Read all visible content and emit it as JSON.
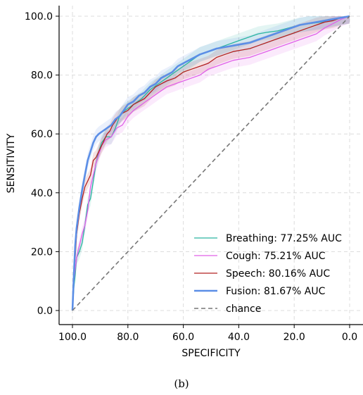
{
  "caption": "(b)",
  "chart_data": {
    "type": "line",
    "xlabel": "SPECIFICITY",
    "ylabel": "SENSITIVITY",
    "xlim": [
      100,
      0
    ],
    "ylim": [
      0,
      100
    ],
    "x_reversed": true,
    "xticks": [
      "100.0",
      "80.0",
      "60.0",
      "40.0",
      "20.0",
      "0.0"
    ],
    "yticks": [
      "0.0",
      "20.0",
      "40.0",
      "60.0",
      "80.0",
      "100.0"
    ],
    "grid": true,
    "legend_position": "bottom-right",
    "series": [
      {
        "name": "Breathing: 77.25% AUC",
        "color": "#2ab5a0",
        "band": true,
        "points": [
          [
            100,
            0
          ],
          [
            99.5,
            8
          ],
          [
            99,
            12
          ],
          [
            98.5,
            18
          ],
          [
            97.5,
            20
          ],
          [
            96.5,
            23
          ],
          [
            95.5,
            29
          ],
          [
            94.5,
            36
          ],
          [
            93.5,
            38
          ],
          [
            92.5,
            44
          ],
          [
            91.5,
            50
          ],
          [
            90.5,
            54
          ],
          [
            89.5,
            57
          ],
          [
            88,
            59
          ],
          [
            86,
            59
          ],
          [
            84.5,
            62
          ],
          [
            83,
            66
          ],
          [
            81,
            68
          ],
          [
            78,
            70
          ],
          [
            75,
            72
          ],
          [
            72,
            75
          ],
          [
            69,
            77
          ],
          [
            66,
            79
          ],
          [
            63,
            81
          ],
          [
            60,
            83
          ],
          [
            57,
            85
          ],
          [
            54,
            87
          ],
          [
            51,
            88
          ],
          [
            48,
            89
          ],
          [
            45,
            90
          ],
          [
            42,
            91
          ],
          [
            39,
            92
          ],
          [
            36,
            93
          ],
          [
            33,
            94
          ],
          [
            30,
            94.5
          ],
          [
            26,
            95
          ],
          [
            22,
            96
          ],
          [
            18,
            97
          ],
          [
            14,
            97.5
          ],
          [
            10,
            98
          ],
          [
            6,
            99
          ],
          [
            3,
            99.5
          ],
          [
            0,
            100
          ]
        ]
      },
      {
        "name": "Cough: 75.21% AUC",
        "color": "#e060e8",
        "band": true,
        "points": [
          [
            100,
            0
          ],
          [
            99.5,
            10
          ],
          [
            99,
            14
          ],
          [
            98.5,
            18
          ],
          [
            97.5,
            22
          ],
          [
            96.5,
            26
          ],
          [
            95.5,
            29
          ],
          [
            94.5,
            34
          ],
          [
            93.5,
            42
          ],
          [
            92.5,
            46
          ],
          [
            91.5,
            50
          ],
          [
            90.5,
            53
          ],
          [
            89.5,
            56
          ],
          [
            88,
            58
          ],
          [
            86,
            59
          ],
          [
            84,
            62
          ],
          [
            82,
            63
          ],
          [
            80,
            66
          ],
          [
            78,
            68
          ],
          [
            75,
            70
          ],
          [
            72,
            72
          ],
          [
            69,
            74
          ],
          [
            66,
            76
          ],
          [
            63,
            77
          ],
          [
            60,
            78
          ],
          [
            57,
            79
          ],
          [
            54,
            80
          ],
          [
            51,
            82
          ],
          [
            48,
            83
          ],
          [
            45,
            84
          ],
          [
            42,
            85
          ],
          [
            39,
            85.5
          ],
          [
            36,
            86
          ],
          [
            33,
            87
          ],
          [
            30,
            88
          ],
          [
            27,
            89
          ],
          [
            24,
            90
          ],
          [
            21,
            91
          ],
          [
            18,
            92
          ],
          [
            15,
            93
          ],
          [
            12,
            94
          ],
          [
            9,
            96
          ],
          [
            6,
            97.5
          ],
          [
            3,
            99
          ],
          [
            0,
            100
          ]
        ]
      },
      {
        "name": "Speech: 80.16% AUC",
        "color": "#b22020",
        "band": true,
        "points": [
          [
            100,
            0
          ],
          [
            99.5,
            12
          ],
          [
            99,
            18
          ],
          [
            98.5,
            26
          ],
          [
            97.5,
            33
          ],
          [
            96.5,
            38
          ],
          [
            95.5,
            42
          ],
          [
            94.5,
            44
          ],
          [
            93.5,
            46
          ],
          [
            92.5,
            51
          ],
          [
            91.5,
            52
          ],
          [
            90.5,
            54
          ],
          [
            89.5,
            56
          ],
          [
            88.5,
            58
          ],
          [
            87.5,
            60
          ],
          [
            86.5,
            61
          ],
          [
            85.5,
            63
          ],
          [
            84,
            65
          ],
          [
            82,
            67
          ],
          [
            80,
            68
          ],
          [
            78,
            70
          ],
          [
            76,
            71
          ],
          [
            74,
            72
          ],
          [
            72,
            74
          ],
          [
            70,
            76
          ],
          [
            68,
            77
          ],
          [
            66,
            78
          ],
          [
            63,
            79
          ],
          [
            60,
            81
          ],
          [
            57,
            82
          ],
          [
            54,
            83
          ],
          [
            51,
            84
          ],
          [
            48,
            86
          ],
          [
            45,
            87
          ],
          [
            42,
            88
          ],
          [
            39,
            88.5
          ],
          [
            36,
            89
          ],
          [
            33,
            90
          ],
          [
            30,
            91
          ],
          [
            27,
            92
          ],
          [
            24,
            93
          ],
          [
            21,
            94
          ],
          [
            18,
            95
          ],
          [
            15,
            96
          ],
          [
            12,
            97
          ],
          [
            9,
            98
          ],
          [
            6,
            98.5
          ],
          [
            3,
            99.5
          ],
          [
            0,
            100
          ]
        ]
      },
      {
        "name": "Fusion: 81.67% AUC",
        "color": "#5b8ee6",
        "band": true,
        "thick": true,
        "points": [
          [
            100,
            0
          ],
          [
            99.5,
            12
          ],
          [
            99,
            22
          ],
          [
            98.5,
            28
          ],
          [
            97.5,
            35
          ],
          [
            96.5,
            41
          ],
          [
            95.5,
            46
          ],
          [
            94.5,
            51
          ],
          [
            93.5,
            54
          ],
          [
            92.5,
            57
          ],
          [
            91.5,
            59
          ],
          [
            90.5,
            60
          ],
          [
            89,
            61
          ],
          [
            87.5,
            62
          ],
          [
            86,
            63
          ],
          [
            84.5,
            65
          ],
          [
            83,
            66
          ],
          [
            81.5,
            68
          ],
          [
            80,
            70
          ],
          [
            78,
            71
          ],
          [
            76,
            73
          ],
          [
            74,
            74
          ],
          [
            72,
            76
          ],
          [
            70,
            77
          ],
          [
            68,
            79
          ],
          [
            66,
            80
          ],
          [
            64,
            81
          ],
          [
            62,
            83
          ],
          [
            60,
            84
          ],
          [
            58,
            85
          ],
          [
            56,
            86
          ],
          [
            54,
            87
          ],
          [
            51,
            88
          ],
          [
            48,
            89
          ],
          [
            45,
            89.5
          ],
          [
            42,
            90
          ],
          [
            39,
            90.5
          ],
          [
            36,
            91
          ],
          [
            33,
            92
          ],
          [
            30,
            93
          ],
          [
            27,
            94
          ],
          [
            24,
            95
          ],
          [
            21,
            96
          ],
          [
            18,
            97
          ],
          [
            15,
            97.5
          ],
          [
            12,
            98
          ],
          [
            9,
            98.5
          ],
          [
            6,
            99
          ],
          [
            3,
            99.5
          ],
          [
            0,
            100
          ]
        ]
      },
      {
        "name": "chance",
        "color": "#777777",
        "dashed": true,
        "points": [
          [
            100,
            0
          ],
          [
            0,
            100
          ]
        ]
      }
    ]
  }
}
